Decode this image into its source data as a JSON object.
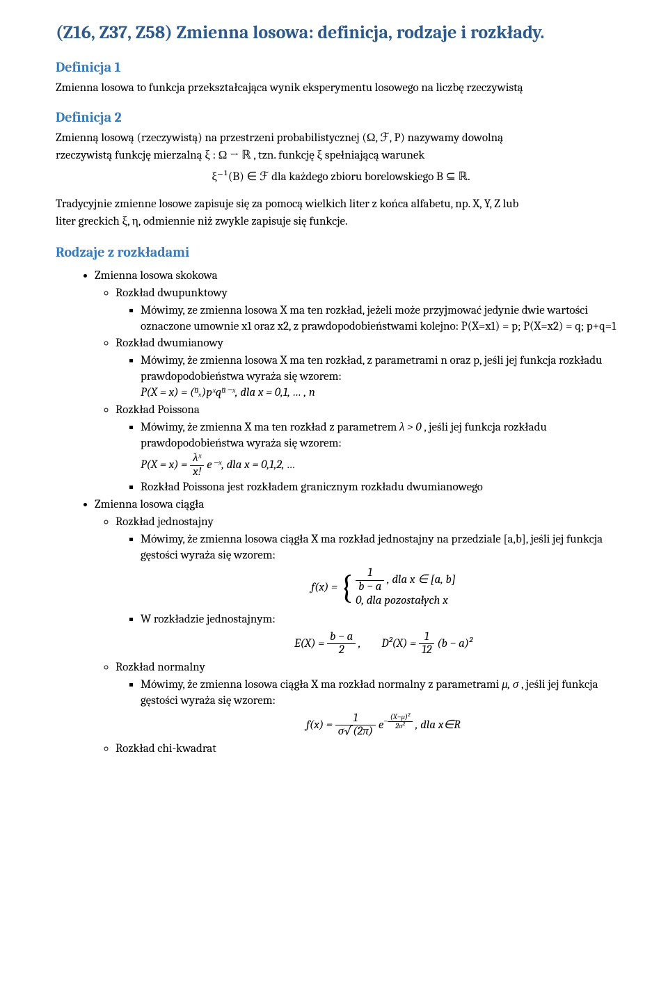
{
  "title": "(Z16, Z37, Z58) Zmienna losowa: definicja, rodzaje i rozkłady.",
  "def1_heading": "Definicja 1",
  "def1_text": "Zmienna losowa to funkcja przekształcająca wynik eksperymentu losowego na liczbę rzeczywistą",
  "def2_heading": "Definicja 2",
  "def2_lead1": "Zmienną losową (rzeczywistą) na przestrzeni probabilistycznej ",
  "def2_space": "(Ω, ℱ, P)",
  "def2_lead2": "nazywamy dowolną",
  "def2_line2a": "rzeczywistą funkcję mierzalną ",
  "def2_map": "ξ :  Ω → ℝ",
  "def2_line2b": ", tzn. funkcję ",
  "def2_xi": "ξ",
  "def2_line2c": "spełniającą warunek",
  "def2_block_left": "ξ⁻¹(B) ∈ ℱ",
  "def2_block_mid": "dla każdego zbioru borelowskiego ",
  "def2_block_right": "B ⊆ ℝ.",
  "trad_line1a": "Tradycyjnie zmienne losowe zapisuje się za pomocą wielkich liter z końca alfabetu, np. ",
  "trad_xyz": "X, Y, Z",
  "trad_line1b": " lub",
  "trad_line2a": "liter greckich ",
  "trad_greek": "ξ, η,",
  "trad_line2b": "odmiennie niż zwykle zapisuje się funkcje.",
  "rodzaje_heading": "Rodzaje z rozkładami",
  "bul": {
    "skokowa": "Zmienna losowa skokowa",
    "dwupunktowy": "Rozkład dwupunktowy",
    "dwupunktowy_text_1": "Mówimy, ze zmienna losowa X ma ten rozkład, jeżeli może przyjmować jedynie dwie wartości oznaczone umownie x1 oraz x2, z prawdopodobieństwami kolejno: P(X=x1) = p; P(X=x2) = q; p+q=1",
    "dwumianowy": "Rozkład dwumianowy",
    "dwumianowy_text_1": "Mówimy, że zmienna losowa X ma ten rozkład, z parametrami n oraz p, jeśli jej funkcja rozkładu prawdopodobieństwa wyraża się wzorem:",
    "dwumianowy_formula": "P(X = x) = (ⁿₓ)pˣqⁿ⁻ˣ, dla x = 0,1, … , n",
    "poissona": "Rozkład Poissona",
    "poissona_text_1a": "Mówimy, że zmienna X ma ten rozkład z parametrem ",
    "poissona_lambda": "λ > 0",
    "poissona_text_1b": ", jeśli jej funkcja rozkładu prawdopodobieństwa wyraża się wzorem:",
    "poissona_formula_left": "P(X = x) = ",
    "poissona_formula_num": "λˣ",
    "poissona_formula_den": "x!",
    "poissona_formula_right": " e⁻ˣ, dla x = 0,1,2, …",
    "poissona_text_2": "Rozkład Poissona jest rozkładem granicznym rozkładu dwumianowego",
    "ciagla": "Zmienna losowa ciągła",
    "jednostajny": "Rozkład jednostajny",
    "jednostajny_text_1": "Mówimy, że zmienna losowa ciągła X ma rozkład jednostajny na przedziale [a,b], jeśli jej funkcja gęstości wyraża się wzorem:",
    "jednostajny_fx": "f(x) = ",
    "jednostajny_case1_num": "1",
    "jednostajny_case1_den": "b − a",
    "jednostajny_case1_cond": ", dla x ∈ [a, b]",
    "jednostajny_case2": "0, dla pozostałych x",
    "jednostajny_text_2": "W rozkładzie jednostajnym:",
    "jednostajny_E_left": "E(X) = ",
    "jednostajny_E_num": "b − a",
    "jednostajny_E_den": "2",
    "jednostajny_E_comma": ",",
    "jednostajny_D_left": "D²(X) = ",
    "jednostajny_D_num": "1",
    "jednostajny_D_den": "12",
    "jednostajny_D_right": " (b − a)²",
    "normalny": "Rozkład normalny",
    "normalny_text_1a": "Mówimy, że zmienna losowa ciągła X ma rozkład normalny z parametrami ",
    "normalny_params": "μ, σ",
    "normalny_text_1b": ", jeśli jej funkcja gęstości wyraża się wzorem:",
    "normalny_fx": "f(x) = ",
    "normalny_num": "1",
    "normalny_den": "σ√(2π)",
    "normalny_exp": " e",
    "normalny_exp_sup_num": "(X−μ)²",
    "normalny_exp_sup_den": "2σ²",
    "normalny_cond": ", dla x∈R",
    "chi": "Rozkład chi-kwadrat"
  }
}
